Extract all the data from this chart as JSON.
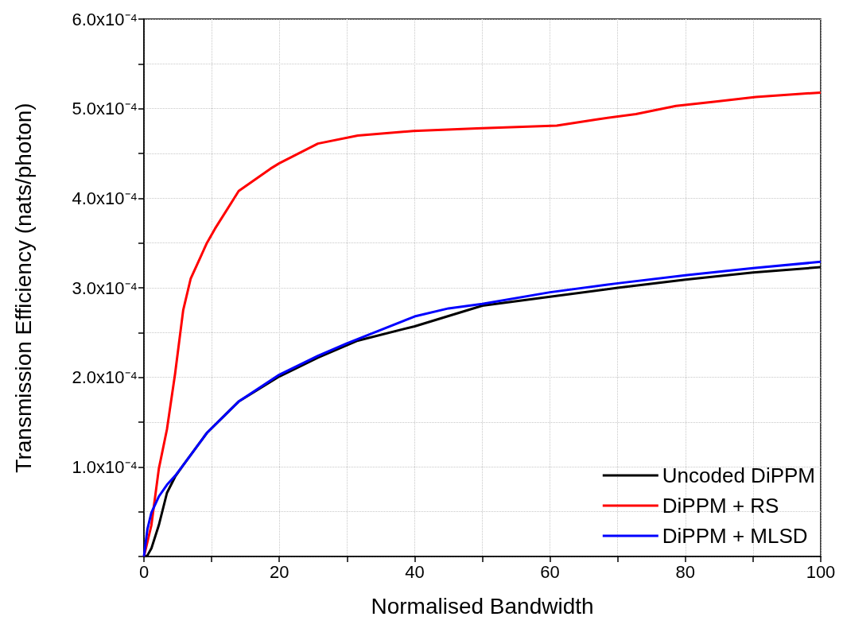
{
  "chart_data": {
    "type": "line",
    "xlabel": "Normalised Bandwidth",
    "ylabel": "Transmission Efficiency (nats/photon)",
    "xlim": [
      0,
      100
    ],
    "xticks": [
      0,
      {
        "value": 10,
        "label": null
      },
      20,
      {
        "value": 30,
        "label": null
      },
      40,
      {
        "value": 50,
        "label": null
      },
      60,
      {
        "value": 70,
        "label": null
      },
      80,
      {
        "value": 90,
        "label": null
      },
      100
    ],
    "ylim": [
      0,
      0.0006
    ],
    "yticks": [
      {
        "value": 0,
        "label": null
      },
      {
        "value": 5e-05,
        "label": null
      },
      {
        "value": 0.0001,
        "label": "1.0x10⁻⁴"
      },
      {
        "value": 0.00015,
        "label": null
      },
      {
        "value": 0.0002,
        "label": "2.0x10⁻⁴"
      },
      {
        "value": 0.00025,
        "label": null
      },
      {
        "value": 0.0003,
        "label": "3.0x10⁻⁴"
      },
      {
        "value": 0.00035,
        "label": null
      },
      {
        "value": 0.0004,
        "label": "4.0x10⁻⁴"
      },
      {
        "value": 0.00045,
        "label": null
      },
      {
        "value": 0.0005,
        "label": "5.0x10⁻⁴"
      },
      {
        "value": 0.00055,
        "label": null
      },
      {
        "value": 0.0006,
        "label": "6.0x10⁻⁴"
      }
    ],
    "grid": true,
    "legend": "bottom right",
    "marker": "none",
    "line_style": "solid",
    "series": [
      {
        "name": "Uncoded DiPPM",
        "color": "#000000",
        "x": [
          0,
          0.5,
          1.1,
          2.2,
          3.4,
          4.6,
          5.8,
          9.3,
          14,
          20,
          25.7,
          31.6,
          40,
          50,
          60,
          70,
          80,
          90,
          100
        ],
        "values": [
          0,
          1e-06,
          9e-06,
          3.5e-05,
          7.1e-05,
          8.9e-05,
          0.000102,
          0.000138,
          0.000173,
          0.000201,
          0.000222,
          0.000241,
          0.000257,
          0.00028,
          0.00029,
          0.0003,
          0.000309,
          0.000317,
          0.000323
        ]
      },
      {
        "name": "DiPPM + RS",
        "color": "#ff0000",
        "x": [
          0,
          1.1,
          2.2,
          3.4,
          4.6,
          5.8,
          6.9,
          9.3,
          10.5,
          14,
          18.7,
          20,
          25.7,
          31.6,
          39.8,
          49.2,
          61,
          66.9,
          72.7,
          78.6,
          84.5,
          90.4,
          100
        ],
        "values": [
          0,
          3.5e-05,
          9.8e-05,
          0.000142,
          0.000204,
          0.000275,
          0.00031,
          0.00035,
          0.000366,
          0.000408,
          0.000433,
          0.000439,
          0.000461,
          0.00047,
          0.000475,
          0.000478,
          0.000481,
          0.000488,
          0.000494,
          0.000503,
          0.000508,
          0.000513,
          0.000518
        ]
      },
      {
        "name": "DiPPM + MLSD",
        "color": "#0000ff",
        "x": [
          0,
          0.5,
          1.1,
          2.2,
          3.4,
          4.6,
          5.8,
          9.3,
          14,
          20,
          25.7,
          30,
          40,
          45,
          50,
          60,
          70,
          80,
          90,
          100
        ],
        "values": [
          0,
          3e-05,
          4.9e-05,
          6.7e-05,
          8e-05,
          9e-05,
          0.000102,
          0.000138,
          0.000173,
          0.000203,
          0.000224,
          0.000238,
          0.000268,
          0.000277,
          0.000282,
          0.000295,
          0.000305,
          0.000314,
          0.000322,
          0.000329
        ]
      }
    ]
  }
}
